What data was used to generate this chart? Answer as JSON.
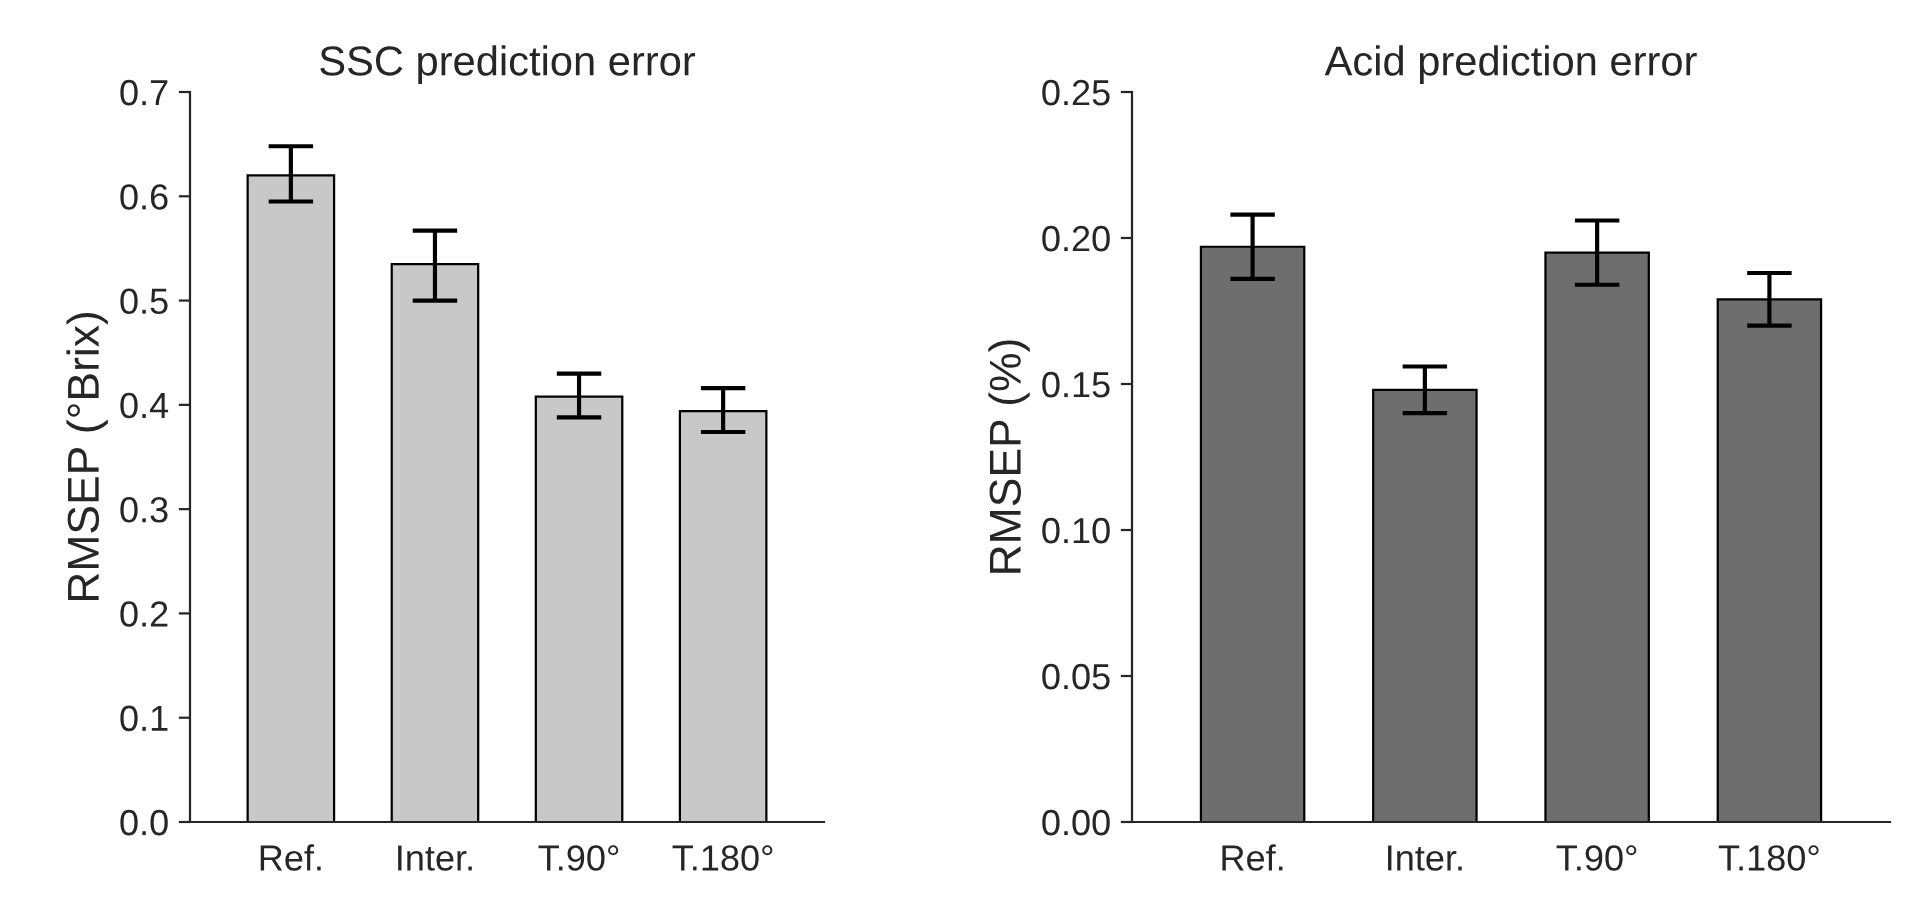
{
  "chart_data": [
    {
      "type": "bar",
      "title": "SSC prediction error",
      "ylabel": "RMSEP (°Brix)",
      "categories": [
        "Ref.",
        "Inter.",
        "T.90°",
        "T.180°"
      ],
      "values": [
        0.62,
        0.535,
        0.408,
        0.394
      ],
      "errors": [
        [
          0.595,
          0.648
        ],
        [
          0.5,
          0.567
        ],
        [
          0.388,
          0.43
        ],
        [
          0.374,
          0.416
        ]
      ],
      "color": "#c8c8c8",
      "ylim": [
        0,
        0.7
      ],
      "yticks": [
        {
          "value": 0,
          "label": "0.0"
        },
        0.1,
        0.2,
        0.3,
        0.4,
        0.5,
        0.6,
        0.7
      ],
      "grid": false,
      "legend": false
    },
    {
      "type": "bar",
      "title": "Acid prediction error",
      "ylabel": "RMSEP (%)",
      "categories": [
        "Ref.",
        "Inter.",
        "T.90°",
        "T.180°"
      ],
      "values": [
        0.197,
        0.148,
        0.195,
        0.179
      ],
      "errors": [
        [
          0.186,
          0.208
        ],
        [
          0.14,
          0.156
        ],
        [
          0.184,
          0.206
        ],
        [
          0.17,
          0.188
        ]
      ],
      "color": "#6e6e6e",
      "ylim": [
        0,
        0.25
      ],
      "yticks": [
        {
          "value": 0,
          "label": "0.00"
        },
        {
          "value": 0.05,
          "label": "0.05"
        },
        {
          "value": 0.1,
          "label": "0.10"
        },
        {
          "value": 0.15,
          "label": "0.15"
        },
        {
          "value": 0.2,
          "label": "0.20"
        },
        {
          "value": 0.25,
          "label": "0.25"
        }
      ],
      "grid": false,
      "legend": false
    }
  ]
}
